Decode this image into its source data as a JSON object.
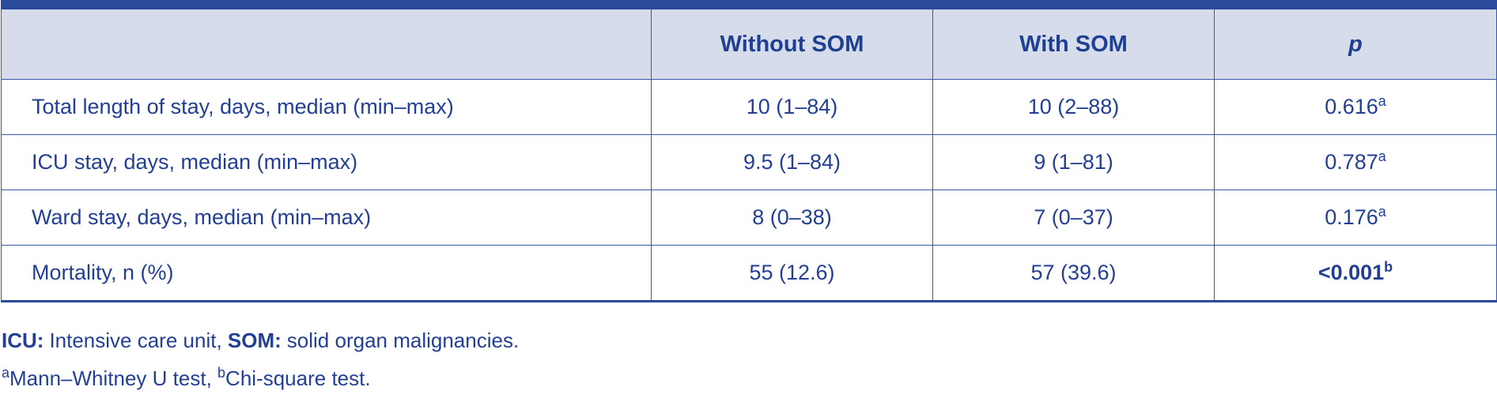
{
  "table": {
    "headers": [
      "Without SOM",
      "With SOM",
      "p"
    ],
    "rows": [
      {
        "label": "Total length of stay, days, median (min–max)",
        "without": "10 (1–84)",
        "with": "10 (2–88)",
        "p": "0.616",
        "p_note": "a"
      },
      {
        "label": "ICU stay, days, median (min–max)",
        "without": "9.5 (1–84)",
        "with": "9 (1–81)",
        "p": "0.787",
        "p_note": "a"
      },
      {
        "label": "Ward stay, days, median (min–max)",
        "without": "8 (0–38)",
        "with": "7 (0–37)",
        "p": "0.176",
        "p_note": "a"
      },
      {
        "label": "Mortality, n (%)",
        "without": "55 (12.6)",
        "with": "57 (39.6)",
        "p": "<0.001",
        "p_note": "b"
      }
    ]
  },
  "footnotes": {
    "abbreviations": [
      {
        "term": "ICU:",
        "definition": "Intensive care unit,"
      },
      {
        "term": "SOM:",
        "definition": "solid organ malignancies."
      }
    ],
    "tests": [
      {
        "mark": "a",
        "text": "Mann–Whitney U test,"
      },
      {
        "mark": "b",
        "text": "Chi-square test."
      }
    ]
  }
}
